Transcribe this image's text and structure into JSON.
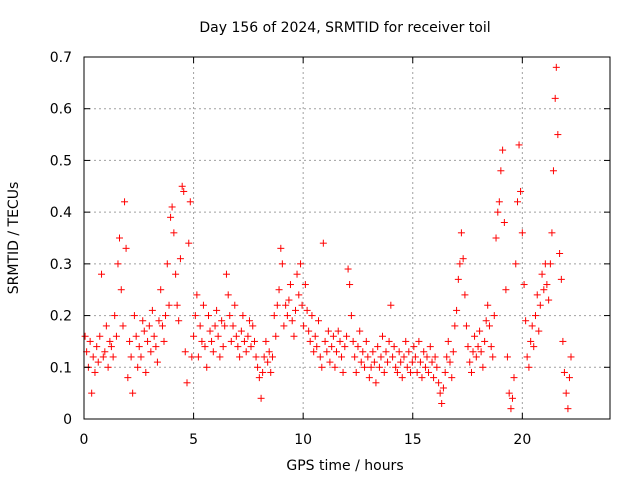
{
  "chart_data": {
    "type": "scatter",
    "title": "Day 156 of 2024, SRMTID for receiver toil",
    "xlabel": "GPS time / hours",
    "ylabel": "SRMTID / TECUs",
    "xlim": [
      0,
      24
    ],
    "ylim": [
      0,
      0.7
    ],
    "xticks": [
      0,
      5,
      10,
      15,
      20
    ],
    "yticks": [
      0,
      0.1,
      0.2,
      0.3,
      0.4,
      0.5,
      0.6,
      0.7
    ],
    "xtick_labels": [
      "0",
      "5",
      "10",
      "15",
      "20"
    ],
    "ytick_labels": [
      "0",
      "0.1",
      "0.2",
      "0.3",
      "0.4",
      "0.5",
      "0.6",
      "0.7"
    ],
    "grid": true,
    "marker": "+",
    "color": "#ff0000",
    "series": [
      {
        "name": "SRMTID",
        "points": [
          [
            0.05,
            0.16
          ],
          [
            0.12,
            0.13
          ],
          [
            0.2,
            0.1
          ],
          [
            0.28,
            0.15
          ],
          [
            0.35,
            0.05
          ],
          [
            0.42,
            0.12
          ],
          [
            0.5,
            0.09
          ],
          [
            0.58,
            0.14
          ],
          [
            0.65,
            0.11
          ],
          [
            0.72,
            0.16
          ],
          [
            0.8,
            0.28
          ],
          [
            0.88,
            0.12
          ],
          [
            0.95,
            0.13
          ],
          [
            1.02,
            0.18
          ],
          [
            1.1,
            0.1
          ],
          [
            1.18,
            0.15
          ],
          [
            1.25,
            0.14
          ],
          [
            1.33,
            0.12
          ],
          [
            1.4,
            0.2
          ],
          [
            1.48,
            0.16
          ],
          [
            1.55,
            0.3
          ],
          [
            1.62,
            0.35
          ],
          [
            1.7,
            0.25
          ],
          [
            1.78,
            0.18
          ],
          [
            1.85,
            0.42
          ],
          [
            1.92,
            0.33
          ],
          [
            2.0,
            0.08
          ],
          [
            2.08,
            0.15
          ],
          [
            2.15,
            0.12
          ],
          [
            2.22,
            0.05
          ],
          [
            2.3,
            0.2
          ],
          [
            2.38,
            0.16
          ],
          [
            2.45,
            0.1
          ],
          [
            2.52,
            0.14
          ],
          [
            2.6,
            0.12
          ],
          [
            2.68,
            0.19
          ],
          [
            2.75,
            0.17
          ],
          [
            2.82,
            0.09
          ],
          [
            2.9,
            0.15
          ],
          [
            2.98,
            0.18
          ],
          [
            3.05,
            0.13
          ],
          [
            3.12,
            0.21
          ],
          [
            3.2,
            0.16
          ],
          [
            3.28,
            0.14
          ],
          [
            3.35,
            0.11
          ],
          [
            3.42,
            0.19
          ],
          [
            3.5,
            0.25
          ],
          [
            3.58,
            0.18
          ],
          [
            3.65,
            0.15
          ],
          [
            3.72,
            0.2
          ],
          [
            3.8,
            0.3
          ],
          [
            3.88,
            0.22
          ],
          [
            3.95,
            0.39
          ],
          [
            4.02,
            0.41
          ],
          [
            4.1,
            0.36
          ],
          [
            4.18,
            0.28
          ],
          [
            4.25,
            0.22
          ],
          [
            4.32,
            0.19
          ],
          [
            4.4,
            0.31
          ],
          [
            4.48,
            0.45
          ],
          [
            4.55,
            0.44
          ],
          [
            4.62,
            0.13
          ],
          [
            4.7,
            0.07
          ],
          [
            4.78,
            0.34
          ],
          [
            4.85,
            0.42
          ],
          [
            4.92,
            0.12
          ],
          [
            5.0,
            0.16
          ],
          [
            5.08,
            0.2
          ],
          [
            5.15,
            0.24
          ],
          [
            5.22,
            0.12
          ],
          [
            5.3,
            0.18
          ],
          [
            5.38,
            0.15
          ],
          [
            5.45,
            0.22
          ],
          [
            5.52,
            0.14
          ],
          [
            5.6,
            0.1
          ],
          [
            5.68,
            0.2
          ],
          [
            5.75,
            0.17
          ],
          [
            5.82,
            0.15
          ],
          [
            5.9,
            0.13
          ],
          [
            5.98,
            0.18
          ],
          [
            6.05,
            0.21
          ],
          [
            6.12,
            0.16
          ],
          [
            6.2,
            0.12
          ],
          [
            6.28,
            0.19
          ],
          [
            6.35,
            0.14
          ],
          [
            6.42,
            0.18
          ],
          [
            6.5,
            0.28
          ],
          [
            6.58,
            0.24
          ],
          [
            6.65,
            0.2
          ],
          [
            6.72,
            0.15
          ],
          [
            6.8,
            0.18
          ],
          [
            6.88,
            0.22
          ],
          [
            6.95,
            0.16
          ],
          [
            7.02,
            0.14
          ],
          [
            7.1,
            0.12
          ],
          [
            7.18,
            0.17
          ],
          [
            7.25,
            0.2
          ],
          [
            7.32,
            0.15
          ],
          [
            7.4,
            0.13
          ],
          [
            7.48,
            0.16
          ],
          [
            7.55,
            0.19
          ],
          [
            7.62,
            0.14
          ],
          [
            7.7,
            0.18
          ],
          [
            7.78,
            0.15
          ],
          [
            7.85,
            0.12
          ],
          [
            7.92,
            0.1
          ],
          [
            8.0,
            0.08
          ],
          [
            8.08,
            0.04
          ],
          [
            8.15,
            0.09
          ],
          [
            8.22,
            0.12
          ],
          [
            8.3,
            0.15
          ],
          [
            8.38,
            0.11
          ],
          [
            8.45,
            0.13
          ],
          [
            8.52,
            0.09
          ],
          [
            8.6,
            0.12
          ],
          [
            8.68,
            0.2
          ],
          [
            8.75,
            0.16
          ],
          [
            8.82,
            0.22
          ],
          [
            8.9,
            0.25
          ],
          [
            8.98,
            0.33
          ],
          [
            9.05,
            0.3
          ],
          [
            9.12,
            0.18
          ],
          [
            9.2,
            0.22
          ],
          [
            9.28,
            0.2
          ],
          [
            9.35,
            0.23
          ],
          [
            9.42,
            0.26
          ],
          [
            9.5,
            0.19
          ],
          [
            9.58,
            0.16
          ],
          [
            9.65,
            0.21
          ],
          [
            9.72,
            0.28
          ],
          [
            9.8,
            0.24
          ],
          [
            9.88,
            0.3
          ],
          [
            9.95,
            0.22
          ],
          [
            10.02,
            0.18
          ],
          [
            10.1,
            0.26
          ],
          [
            10.18,
            0.21
          ],
          [
            10.25,
            0.17
          ],
          [
            10.32,
            0.15
          ],
          [
            10.4,
            0.2
          ],
          [
            10.48,
            0.13
          ],
          [
            10.55,
            0.16
          ],
          [
            10.62,
            0.14
          ],
          [
            10.7,
            0.19
          ],
          [
            10.78,
            0.12
          ],
          [
            10.85,
            0.1
          ],
          [
            10.92,
            0.34
          ],
          [
            11.0,
            0.15
          ],
          [
            11.08,
            0.13
          ],
          [
            11.15,
            0.17
          ],
          [
            11.22,
            0.11
          ],
          [
            11.3,
            0.14
          ],
          [
            11.38,
            0.16
          ],
          [
            11.45,
            0.1
          ],
          [
            11.52,
            0.13
          ],
          [
            11.6,
            0.17
          ],
          [
            11.68,
            0.15
          ],
          [
            11.75,
            0.12
          ],
          [
            11.82,
            0.09
          ],
          [
            11.9,
            0.14
          ],
          [
            11.98,
            0.16
          ],
          [
            12.05,
            0.29
          ],
          [
            12.12,
            0.26
          ],
          [
            12.2,
            0.2
          ],
          [
            12.28,
            0.15
          ],
          [
            12.35,
            0.12
          ],
          [
            12.42,
            0.09
          ],
          [
            12.5,
            0.14
          ],
          [
            12.58,
            0.17
          ],
          [
            12.65,
            0.11
          ],
          [
            12.72,
            0.13
          ],
          [
            12.8,
            0.1
          ],
          [
            12.88,
            0.15
          ],
          [
            12.95,
            0.12
          ],
          [
            13.02,
            0.08
          ],
          [
            13.1,
            0.1
          ],
          [
            13.18,
            0.13
          ],
          [
            13.25,
            0.11
          ],
          [
            13.32,
            0.07
          ],
          [
            13.4,
            0.14
          ],
          [
            13.48,
            0.1
          ],
          [
            13.55,
            0.12
          ],
          [
            13.62,
            0.16
          ],
          [
            13.7,
            0.09
          ],
          [
            13.78,
            0.13
          ],
          [
            13.85,
            0.11
          ],
          [
            13.92,
            0.15
          ],
          [
            14.0,
            0.22
          ],
          [
            14.08,
            0.12
          ],
          [
            14.15,
            0.14
          ],
          [
            14.22,
            0.1
          ],
          [
            14.3,
            0.09
          ],
          [
            14.38,
            0.13
          ],
          [
            14.45,
            0.11
          ],
          [
            14.52,
            0.08
          ],
          [
            14.6,
            0.12
          ],
          [
            14.68,
            0.15
          ],
          [
            14.75,
            0.1
          ],
          [
            14.82,
            0.13
          ],
          [
            14.9,
            0.09
          ],
          [
            14.98,
            0.11
          ],
          [
            15.05,
            0.14
          ],
          [
            15.12,
            0.12
          ],
          [
            15.2,
            0.09
          ],
          [
            15.28,
            0.15
          ],
          [
            15.35,
            0.11
          ],
          [
            15.42,
            0.08
          ],
          [
            15.5,
            0.13
          ],
          [
            15.58,
            0.1
          ],
          [
            15.65,
            0.12
          ],
          [
            15.72,
            0.09
          ],
          [
            15.8,
            0.14
          ],
          [
            15.88,
            0.11
          ],
          [
            15.95,
            0.08
          ],
          [
            16.02,
            0.12
          ],
          [
            16.1,
            0.1
          ],
          [
            16.18,
            0.07
          ],
          [
            16.25,
            0.05
          ],
          [
            16.32,
            0.03
          ],
          [
            16.4,
            0.06
          ],
          [
            16.48,
            0.09
          ],
          [
            16.55,
            0.12
          ],
          [
            16.62,
            0.15
          ],
          [
            16.7,
            0.11
          ],
          [
            16.78,
            0.08
          ],
          [
            16.85,
            0.13
          ],
          [
            16.92,
            0.18
          ],
          [
            17.0,
            0.21
          ],
          [
            17.08,
            0.27
          ],
          [
            17.15,
            0.3
          ],
          [
            17.22,
            0.36
          ],
          [
            17.3,
            0.31
          ],
          [
            17.38,
            0.24
          ],
          [
            17.45,
            0.18
          ],
          [
            17.52,
            0.14
          ],
          [
            17.6,
            0.11
          ],
          [
            17.68,
            0.09
          ],
          [
            17.75,
            0.13
          ],
          [
            17.82,
            0.16
          ],
          [
            17.9,
            0.12
          ],
          [
            17.98,
            0.14
          ],
          [
            18.05,
            0.17
          ],
          [
            18.12,
            0.13
          ],
          [
            18.2,
            0.1
          ],
          [
            18.28,
            0.15
          ],
          [
            18.35,
            0.19
          ],
          [
            18.42,
            0.22
          ],
          [
            18.5,
            0.18
          ],
          [
            18.58,
            0.14
          ],
          [
            18.65,
            0.12
          ],
          [
            18.72,
            0.2
          ],
          [
            18.8,
            0.35
          ],
          [
            18.88,
            0.4
          ],
          [
            18.95,
            0.42
          ],
          [
            19.02,
            0.48
          ],
          [
            19.1,
            0.52
          ],
          [
            19.18,
            0.38
          ],
          [
            19.25,
            0.25
          ],
          [
            19.32,
            0.12
          ],
          [
            19.4,
            0.05
          ],
          [
            19.48,
            0.02
          ],
          [
            19.55,
            0.04
          ],
          [
            19.62,
            0.08
          ],
          [
            19.7,
            0.3
          ],
          [
            19.78,
            0.42
          ],
          [
            19.85,
            0.53
          ],
          [
            19.92,
            0.44
          ],
          [
            20.0,
            0.36
          ],
          [
            20.08,
            0.26
          ],
          [
            20.15,
            0.19
          ],
          [
            20.22,
            0.12
          ],
          [
            20.3,
            0.1
          ],
          [
            20.38,
            0.15
          ],
          [
            20.45,
            0.18
          ],
          [
            20.52,
            0.14
          ],
          [
            20.6,
            0.2
          ],
          [
            20.68,
            0.24
          ],
          [
            20.75,
            0.17
          ],
          [
            20.82,
            0.22
          ],
          [
            20.9,
            0.28
          ],
          [
            20.98,
            0.25
          ],
          [
            21.05,
            0.3
          ],
          [
            21.12,
            0.26
          ],
          [
            21.2,
            0.23
          ],
          [
            21.28,
            0.3
          ],
          [
            21.35,
            0.36
          ],
          [
            21.42,
            0.48
          ],
          [
            21.5,
            0.62
          ],
          [
            21.55,
            0.68
          ],
          [
            21.62,
            0.55
          ],
          [
            21.7,
            0.32
          ],
          [
            21.78,
            0.27
          ],
          [
            21.85,
            0.15
          ],
          [
            21.92,
            0.09
          ],
          [
            22.0,
            0.05
          ],
          [
            22.08,
            0.02
          ],
          [
            22.15,
            0.08
          ],
          [
            22.22,
            0.12
          ]
        ]
      }
    ]
  }
}
